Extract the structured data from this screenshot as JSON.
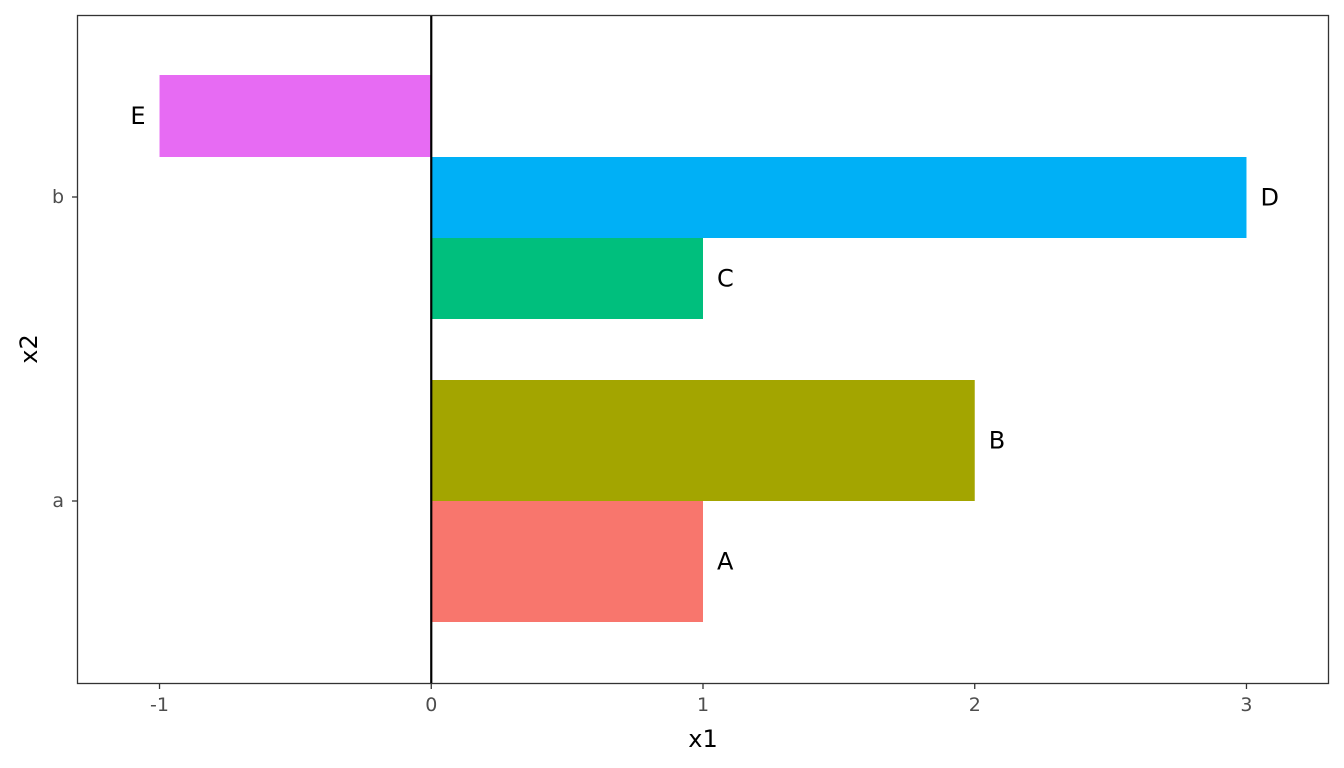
{
  "chart_data": {
    "type": "bar",
    "orientation": "horizontal",
    "xlabel": "x1",
    "ylabel": "x2",
    "xlim": [
      -1.3,
      3.3
    ],
    "xticks": [
      -1,
      0,
      1,
      2,
      3
    ],
    "y_categories": [
      "a",
      "b"
    ],
    "grid": false,
    "legend": "none",
    "zero_line": true,
    "bars": [
      {
        "label": "A",
        "group": "a",
        "value": 1,
        "color": "#F8766D"
      },
      {
        "label": "B",
        "group": "a",
        "value": 2,
        "color": "#A3A500"
      },
      {
        "label": "C",
        "group": "b",
        "value": 1,
        "color": "#00BF7D"
      },
      {
        "label": "D",
        "group": "b",
        "value": 3,
        "color": "#00B0F6"
      },
      {
        "label": "E",
        "group": "b",
        "value": -1,
        "color": "#E76BF3"
      }
    ]
  }
}
